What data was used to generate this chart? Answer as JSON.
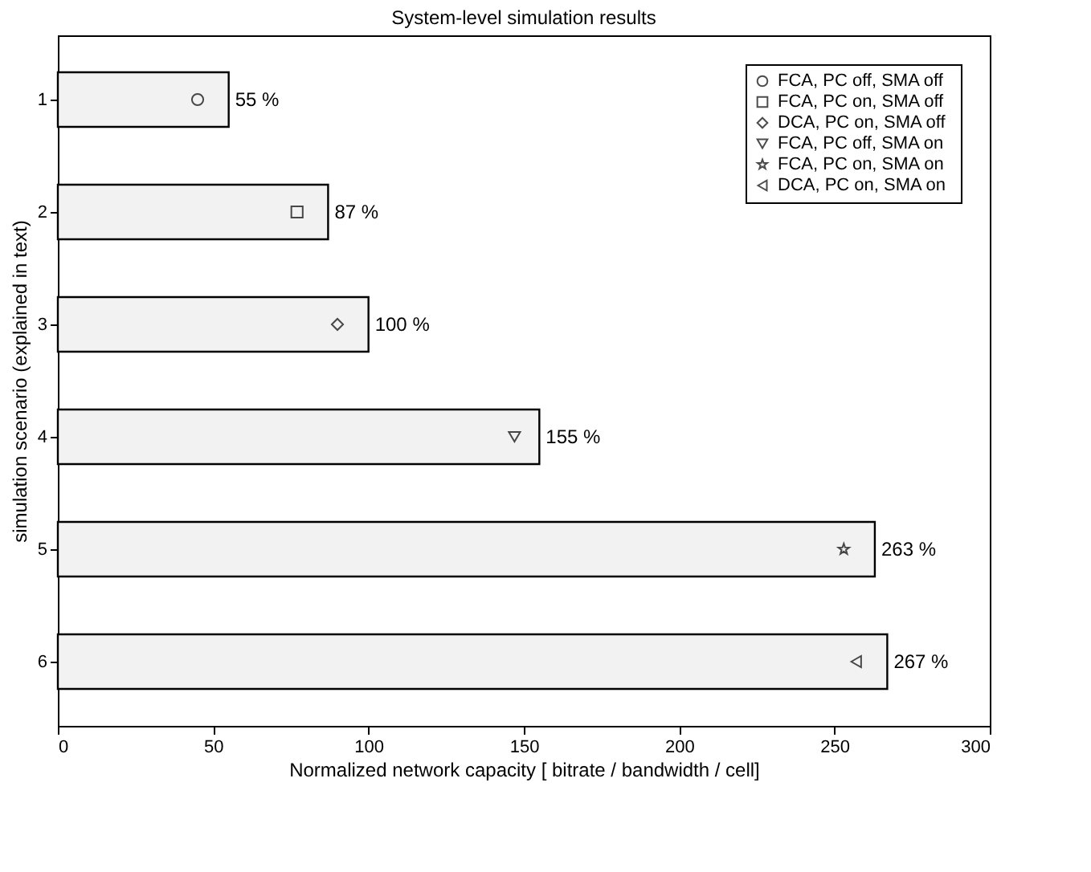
{
  "chart_data": {
    "type": "bar",
    "orientation": "horizontal",
    "title": "System-level simulation results",
    "xlabel": "Normalized network capacity [ bitrate / bandwidth / cell]",
    "ylabel": "simulation scenario (explained in text)",
    "categories": [
      "1",
      "2",
      "3",
      "4",
      "5",
      "6"
    ],
    "xlim": [
      0,
      300
    ],
    "xticks": [
      0,
      50,
      100,
      150,
      200,
      250,
      300
    ],
    "grid": false,
    "legend": "top right",
    "series": [
      {
        "color": "#f2f2f2",
        "values": [
          55,
          87,
          100,
          155,
          263,
          267
        ],
        "value_labels": [
          "55 %",
          "87 %",
          "100 %",
          "155 %",
          "263 %",
          "267 %"
        ]
      },
      {
        "type": "scatter",
        "name": "FCA, PC off, SMA off",
        "color": "#000000",
        "marker": "circle",
        "x": [
          "1"
        ],
        "values": [
          45
        ]
      },
      {
        "type": "scatter",
        "name": "FCA, PC on, SMA off",
        "color": "#000000",
        "marker": "square",
        "x": [
          "2"
        ],
        "values": [
          77
        ]
      },
      {
        "type": "scatter",
        "name": "DCA, PC on, SMA off",
        "color": "#000000",
        "marker": "diamond",
        "x": [
          "3"
        ],
        "values": [
          90
        ]
      },
      {
        "type": "scatter",
        "name": "FCA, PC off, SMA  on",
        "color": "#000000",
        "marker": "triangle-down",
        "x": [
          "4"
        ],
        "values": [
          147
        ]
      },
      {
        "type": "scatter",
        "name": "FCA, PC on, SMA  on",
        "color": "#000000",
        "marker": "star",
        "x": [
          "5"
        ],
        "values": [
          253
        ]
      },
      {
        "type": "scatter",
        "name": "DCA, PC on, SMA  on",
        "color": "#000000",
        "marker": "triangle-left",
        "x": [
          "6"
        ],
        "values": [
          257
        ]
      }
    ]
  }
}
